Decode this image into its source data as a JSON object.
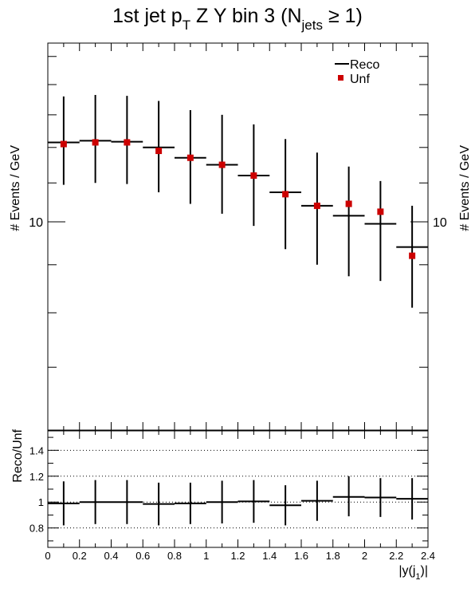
{
  "chart_data": [
    {
      "type": "scatter",
      "title": "1st jet p_T Z Y bin 3 (N_jets ≥ 1)",
      "title_parts": {
        "main": "1st jet p",
        "sub1": "T",
        "mid": " Z Y bin 3 (N",
        "sub2": "jets",
        "end": " ≥ 1)"
      },
      "ylabel": "# Events / GeV",
      "ylabel_right": "# Events / GeV",
      "y_scale": "log",
      "ylim": [
        6.0,
        15.5
      ],
      "xlim": [
        0,
        2.4
      ],
      "y_tick_labels": [
        {
          "value": 10,
          "label": "10"
        }
      ],
      "legend": {
        "placement": "top-right",
        "entries": [
          {
            "label": "Reco",
            "marker": "line",
            "color": "#000000"
          },
          {
            "label": "Unf",
            "marker": "square",
            "color": "#cc0000"
          }
        ]
      },
      "series": [
        {
          "name": "Reco",
          "style": "horizontal-step",
          "color": "#000000",
          "x_low": [
            0.0,
            0.2,
            0.4,
            0.6,
            0.8,
            1.0,
            1.2,
            1.4,
            1.6,
            1.8,
            2.0,
            2.2
          ],
          "x_high": [
            0.2,
            0.4,
            0.6,
            0.8,
            1.0,
            1.2,
            1.4,
            1.6,
            1.8,
            2.0,
            2.2,
            2.4
          ],
          "values": [
            12.15,
            12.2,
            12.17,
            12.0,
            11.7,
            11.5,
            11.2,
            10.75,
            10.4,
            10.15,
            9.95,
            9.4
          ],
          "err_low": [
            1.2,
            1.2,
            1.2,
            1.25,
            1.25,
            1.3,
            1.3,
            1.4,
            1.4,
            1.4,
            1.3,
            1.3
          ],
          "err_high": [
            1.45,
            1.45,
            1.45,
            1.45,
            1.45,
            1.5,
            1.5,
            1.5,
            1.45,
            1.3,
            1.1,
            1.0
          ]
        },
        {
          "name": "Unf",
          "style": "marker",
          "color": "#cc0000",
          "x": [
            0.1,
            0.3,
            0.5,
            0.7,
            0.9,
            1.1,
            1.3,
            1.5,
            1.7,
            1.9,
            2.1,
            2.3
          ],
          "values": [
            12.1,
            12.15,
            12.15,
            11.9,
            11.7,
            11.5,
            11.2,
            10.7,
            10.4,
            10.45,
            10.25,
            9.2
          ]
        }
      ]
    },
    {
      "type": "scatter",
      "ylabel": "Reco/Unf",
      "xlabel": "|y(j_1)|",
      "xlabel_parts": {
        "main": "|y(j",
        "sub": "1",
        "end": ")|"
      },
      "xlim": [
        0,
        2.4
      ],
      "ylim": [
        0.65,
        1.55
      ],
      "x_tick_labels": [
        "0",
        "0.2",
        "0.4",
        "0.6",
        "0.8",
        "1",
        "1.2",
        "1.4",
        "1.6",
        "1.8",
        "2",
        "2.2",
        "2.4"
      ],
      "y_tick_labels": [
        "0.8",
        "1",
        "1.2",
        "1.4"
      ],
      "y_ticks": [
        0.8,
        1.0,
        1.2,
        1.4
      ],
      "grid": "horizontal dotted at y ticks",
      "series": [
        {
          "name": "Reco/Unf",
          "style": "horizontal-step",
          "color": "#000000",
          "x_low": [
            0.0,
            0.2,
            0.4,
            0.6,
            0.8,
            1.0,
            1.2,
            1.4,
            1.6,
            1.8,
            2.0,
            2.2
          ],
          "x_high": [
            0.2,
            0.4,
            0.6,
            0.8,
            1.0,
            1.2,
            1.4,
            1.6,
            1.8,
            2.0,
            2.2,
            2.4
          ],
          "values": [
            0.99,
            1.0,
            1.0,
            0.985,
            0.99,
            1.0,
            1.005,
            0.975,
            1.01,
            1.04,
            1.035,
            1.025
          ],
          "err_low": [
            0.17,
            0.17,
            0.17,
            0.165,
            0.16,
            0.165,
            0.165,
            0.155,
            0.155,
            0.15,
            0.15,
            0.16
          ],
          "err_high": [
            0.17,
            0.17,
            0.17,
            0.165,
            0.16,
            0.165,
            0.165,
            0.155,
            0.155,
            0.16,
            0.15,
            0.16
          ]
        }
      ]
    }
  ]
}
